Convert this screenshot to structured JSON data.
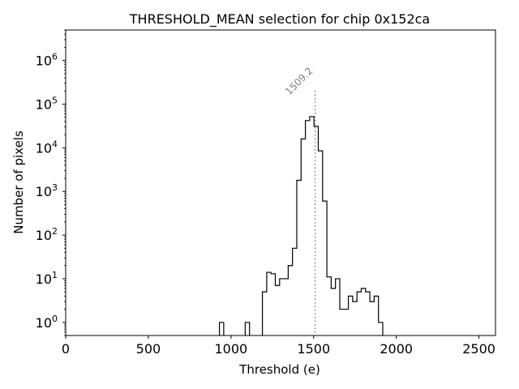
{
  "chart_data": {
    "type": "histogram",
    "title": "THRESHOLD_MEAN selection for chip 0x152ca",
    "xlabel": "Threshold (e)",
    "ylabel": "Number of pixels",
    "xlim": [
      0,
      2600
    ],
    "ylim": [
      0.5,
      5000000
    ],
    "yscale": "log",
    "x_ticks": [
      0,
      500,
      1000,
      1500,
      2000,
      2500
    ],
    "x_tick_labels": [
      "0",
      "500",
      "1000",
      "1500",
      "2000",
      "2500"
    ],
    "y_ticks": [
      1,
      10,
      100,
      1000,
      10000,
      100000,
      1000000
    ],
    "y_tick_labels": [
      {
        "base": "10",
        "exp": "0"
      },
      {
        "base": "10",
        "exp": "1"
      },
      {
        "base": "10",
        "exp": "2"
      },
      {
        "base": "10",
        "exp": "3"
      },
      {
        "base": "10",
        "exp": "4"
      },
      {
        "base": "10",
        "exp": "5"
      },
      {
        "base": "10",
        "exp": "6"
      }
    ],
    "bin_width": 26,
    "bins": [
      {
        "start": 930,
        "count": 1
      },
      {
        "start": 1086,
        "count": 1
      },
      {
        "start": 1190,
        "count": 5
      },
      {
        "start": 1216,
        "count": 14
      },
      {
        "start": 1242,
        "count": 13
      },
      {
        "start": 1268,
        "count": 7
      },
      {
        "start": 1294,
        "count": 10
      },
      {
        "start": 1320,
        "count": 10
      },
      {
        "start": 1346,
        "count": 20
      },
      {
        "start": 1372,
        "count": 50
      },
      {
        "start": 1398,
        "count": 1800
      },
      {
        "start": 1424,
        "count": 16000
      },
      {
        "start": 1450,
        "count": 42000
      },
      {
        "start": 1476,
        "count": 52000
      },
      {
        "start": 1502,
        "count": 31000
      },
      {
        "start": 1528,
        "count": 8500
      },
      {
        "start": 1554,
        "count": 600
      },
      {
        "start": 1580,
        "count": 11
      },
      {
        "start": 1606,
        "count": 6
      },
      {
        "start": 1632,
        "count": 10
      },
      {
        "start": 1658,
        "count": 2
      },
      {
        "start": 1684,
        "count": 2
      },
      {
        "start": 1710,
        "count": 4
      },
      {
        "start": 1736,
        "count": 3
      },
      {
        "start": 1762,
        "count": 5
      },
      {
        "start": 1788,
        "count": 6
      },
      {
        "start": 1814,
        "count": 5
      },
      {
        "start": 1840,
        "count": 3
      },
      {
        "start": 1866,
        "count": 4
      },
      {
        "start": 1892,
        "count": 1
      }
    ],
    "annotation": {
      "label": "1509.2",
      "x": 1509.2
    },
    "colors": {
      "bar": "#000000",
      "annotation": "#808080"
    }
  }
}
